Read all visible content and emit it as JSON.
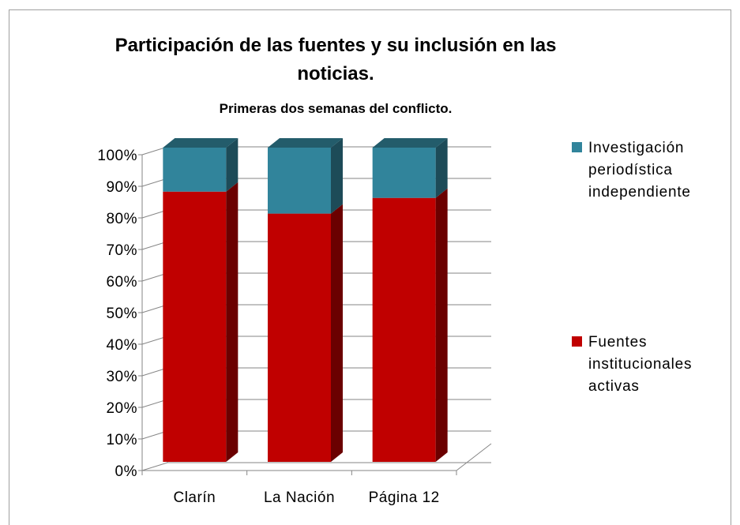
{
  "chart_data": {
    "type": "bar",
    "stacked": true,
    "title": "Participación de las fuentes y su inclusión en las noticias.",
    "subtitle": "Primeras dos semanas del conflicto.",
    "categories": [
      "Clarín",
      "La Nación",
      "Página 12"
    ],
    "series": [
      {
        "name": "Fuentes institucionales activas",
        "color": "#c00000",
        "values": [
          86,
          79,
          84
        ]
      },
      {
        "name": "Investigación periodística independiente",
        "color": "#31849b",
        "values": [
          14,
          21,
          16
        ]
      }
    ],
    "ylim": [
      0,
      100
    ],
    "yticks": [
      {
        "value": 0,
        "label": "0%"
      },
      {
        "value": 10,
        "label": "10%"
      },
      {
        "value": 20,
        "label": "20%"
      },
      {
        "value": 30,
        "label": "30%"
      },
      {
        "value": 40,
        "label": "40%"
      },
      {
        "value": 50,
        "label": "50%"
      },
      {
        "value": 60,
        "label": "60%"
      },
      {
        "value": 70,
        "label": "70%"
      },
      {
        "value": 80,
        "label": "80%"
      },
      {
        "value": 90,
        "label": "90%"
      },
      {
        "value": 100,
        "label": "100%"
      }
    ],
    "grid": true,
    "legend": "right"
  }
}
